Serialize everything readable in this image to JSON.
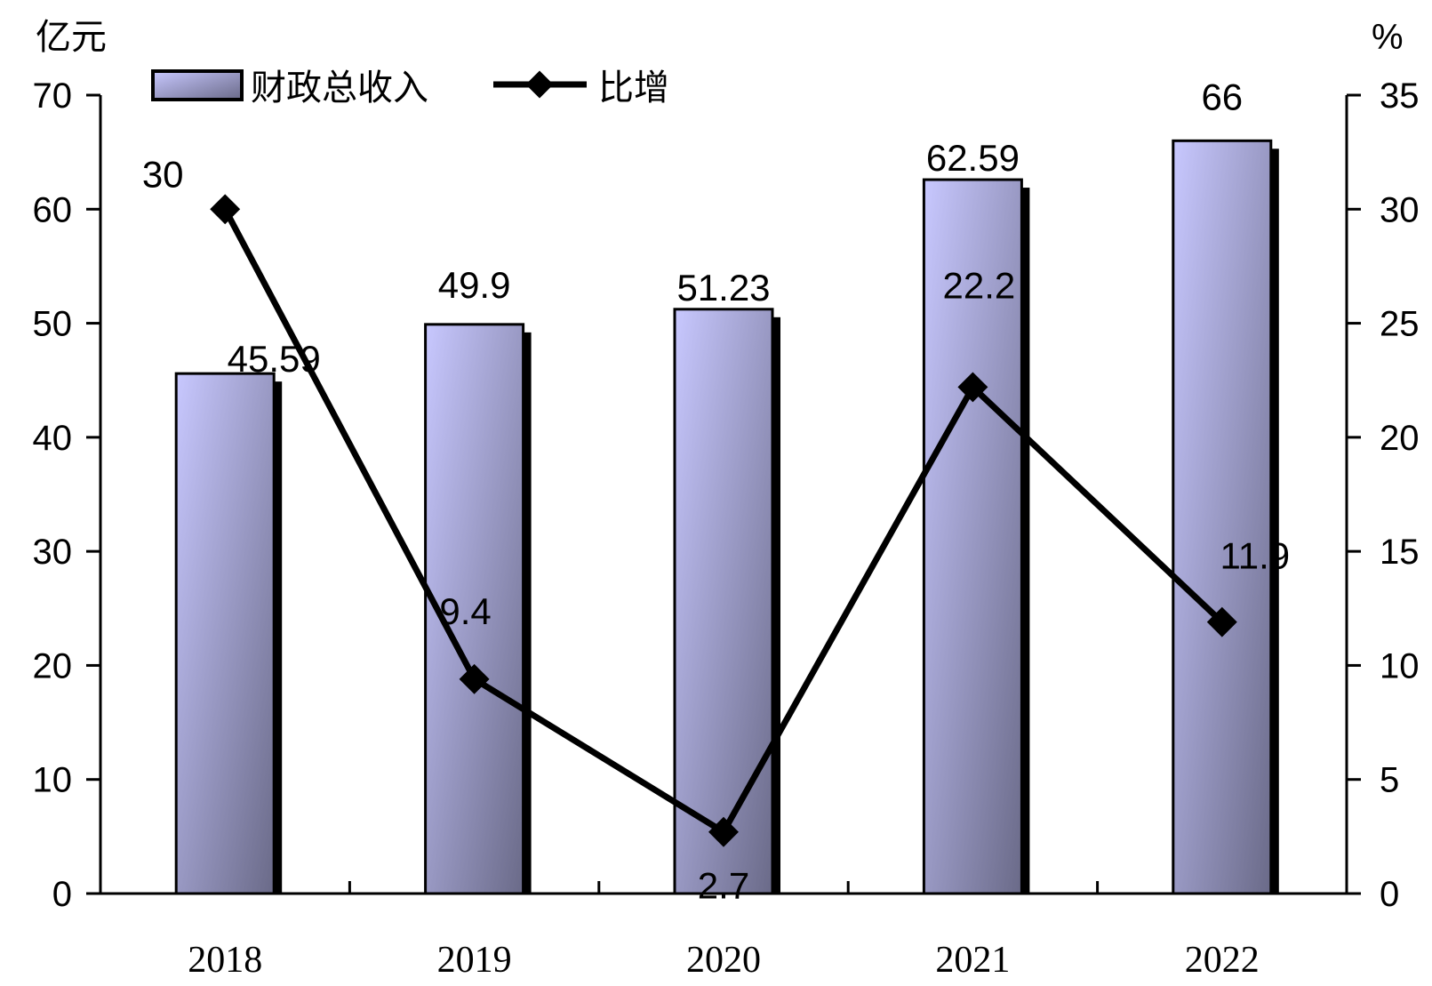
{
  "chart_data": {
    "type": "bar",
    "categories": [
      "2018",
      "2019",
      "2020",
      "2021",
      "2022"
    ],
    "series": [
      {
        "name": "财政总收入",
        "type": "bar",
        "axis": "left",
        "values": [
          45.59,
          49.9,
          51.23,
          62.59,
          66
        ]
      },
      {
        "name": "比增",
        "type": "line",
        "axis": "right",
        "values": [
          30,
          9.4,
          2.7,
          22.2,
          11.9
        ]
      }
    ],
    "y_left": {
      "unit_label": "亿元",
      "min": 0,
      "max": 70,
      "ticks": [
        0,
        10,
        20,
        30,
        40,
        50,
        60,
        70
      ]
    },
    "y_right": {
      "unit_label": "%",
      "min": 0,
      "max": 35,
      "ticks": [
        0,
        5,
        10,
        15,
        20,
        25,
        30,
        35
      ]
    },
    "legend_position": "top-left",
    "grid": false,
    "colors": {
      "bar_light": "#c8c8ff",
      "bar_dark": "#6a6a88",
      "line": "#000000"
    }
  }
}
